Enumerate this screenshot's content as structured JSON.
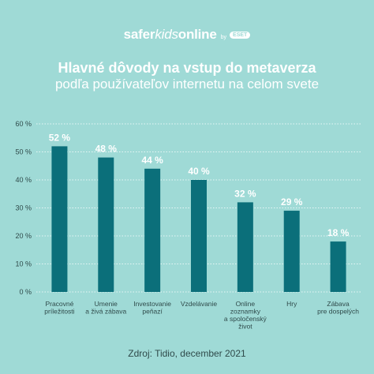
{
  "brand": {
    "name_part1": "safer",
    "name_part2": "kids",
    "name_part3": "online",
    "by": "by",
    "eset": "ESET"
  },
  "header": {
    "title": "Hlavné dôvody na vstup do metaverza",
    "subtitle": "podľa používateľov internetu na celom svete"
  },
  "footer": {
    "source": "Zdroj: Tidio, december 2021"
  },
  "colors": {
    "background": "#9fdad6",
    "bar": "#0b6f7a",
    "grid": "#ffffff",
    "text": "#2f4a4a",
    "label": "#ffffff"
  },
  "chart_data": {
    "type": "bar",
    "categories": [
      [
        "Pracovné",
        "príležitosti"
      ],
      [
        "Umenie",
        "a živá zábava"
      ],
      [
        "Investovanie",
        "peňazí"
      ],
      [
        "Vzdelávanie"
      ],
      [
        "Online",
        "zoznamky",
        "a spoločenský",
        "život"
      ],
      [
        "Hry"
      ],
      [
        "Zábava",
        "pre dospelých"
      ]
    ],
    "values": [
      52,
      48,
      44,
      40,
      32,
      29,
      18
    ],
    "value_labels": [
      "52 %",
      "48 %",
      "44 %",
      "40 %",
      "32 %",
      "29 %",
      "18 %"
    ],
    "y_ticks": [
      0,
      10,
      20,
      30,
      40,
      50,
      60
    ],
    "y_tick_labels": [
      "0 %",
      "10 %",
      "20 %",
      "30 %",
      "40 %",
      "50 %",
      "60 %"
    ],
    "ylim": [
      0,
      60
    ],
    "grid": true,
    "title": "Hlavné dôvody na vstup do metaverza",
    "subtitle": "podľa používateľov internetu na celom svete"
  }
}
